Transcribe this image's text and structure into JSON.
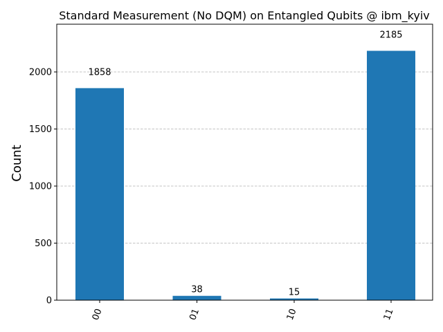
{
  "chart_data": {
    "type": "bar",
    "title": "Standard Measurement (No DQM) on Entangled Qubits @ ibm_kyiv",
    "xlabel": "",
    "ylabel": "Count",
    "categories": [
      "00",
      "01",
      "10",
      "11"
    ],
    "values": [
      1858,
      38,
      15,
      2185
    ],
    "data_labels": [
      "1858",
      "38",
      "15",
      "2185"
    ],
    "yticks": [
      0,
      500,
      1000,
      1500,
      2000
    ],
    "ytick_labels": [
      "0",
      "500",
      "1000",
      "1500",
      "2000"
    ],
    "ylim": [
      0,
      2420
    ],
    "grid": "y-dashed",
    "legend": "none",
    "bar_color": "#1f77b4",
    "grid_color": "#b0b0b0"
  }
}
